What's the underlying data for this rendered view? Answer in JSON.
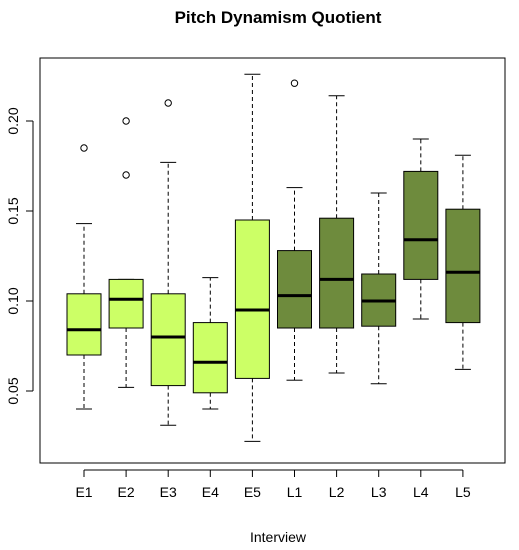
{
  "chart_data": {
    "type": "boxplot",
    "title": "Pitch Dynamism Quotient",
    "xlabel": "Interview",
    "ylabel": "",
    "ylim": [
      0.01,
      0.235
    ],
    "y_ticks": [
      0.05,
      0.1,
      0.15,
      0.2
    ],
    "y_tick_labels": [
      "0.05",
      "0.10",
      "0.15",
      "0.20"
    ],
    "grid": false,
    "legend": "none",
    "colors": {
      "early": "#ccff66",
      "late": "#6e8b3d",
      "outline": "#000000"
    },
    "categories": [
      "E1",
      "E2",
      "E3",
      "E4",
      "E5",
      "L1",
      "L2",
      "L3",
      "L4",
      "L5"
    ],
    "boxes": [
      {
        "label": "E1",
        "group": "early",
        "whisker_low": 0.04,
        "q1": 0.07,
        "median": 0.084,
        "q3": 0.104,
        "whisker_high": 0.143,
        "outliers": [
          0.185
        ]
      },
      {
        "label": "E2",
        "group": "early",
        "whisker_low": 0.052,
        "q1": 0.085,
        "median": 0.101,
        "q3": 0.112,
        "whisker_high": 0.112,
        "outliers": [
          0.17,
          0.2
        ]
      },
      {
        "label": "E3",
        "group": "early",
        "whisker_low": 0.031,
        "q1": 0.053,
        "median": 0.08,
        "q3": 0.104,
        "whisker_high": 0.177,
        "outliers": [
          0.21
        ]
      },
      {
        "label": "E4",
        "group": "early",
        "whisker_low": 0.04,
        "q1": 0.049,
        "median": 0.066,
        "q3": 0.088,
        "whisker_high": 0.113,
        "outliers": []
      },
      {
        "label": "E5",
        "group": "early",
        "whisker_low": 0.022,
        "q1": 0.057,
        "median": 0.095,
        "q3": 0.145,
        "whisker_high": 0.226,
        "outliers": []
      },
      {
        "label": "L1",
        "group": "late",
        "whisker_low": 0.056,
        "q1": 0.085,
        "median": 0.103,
        "q3": 0.128,
        "whisker_high": 0.163,
        "outliers": [
          0.221
        ]
      },
      {
        "label": "L2",
        "group": "late",
        "whisker_low": 0.06,
        "q1": 0.085,
        "median": 0.112,
        "q3": 0.146,
        "whisker_high": 0.214,
        "outliers": []
      },
      {
        "label": "L3",
        "group": "late",
        "whisker_low": 0.054,
        "q1": 0.086,
        "median": 0.1,
        "q3": 0.115,
        "whisker_high": 0.16,
        "outliers": []
      },
      {
        "label": "L4",
        "group": "late",
        "whisker_low": 0.09,
        "q1": 0.112,
        "median": 0.134,
        "q3": 0.172,
        "whisker_high": 0.19,
        "outliers": []
      },
      {
        "label": "L5",
        "group": "late",
        "whisker_low": 0.062,
        "q1": 0.088,
        "median": 0.116,
        "q3": 0.151,
        "whisker_high": 0.181,
        "outliers": []
      }
    ]
  }
}
